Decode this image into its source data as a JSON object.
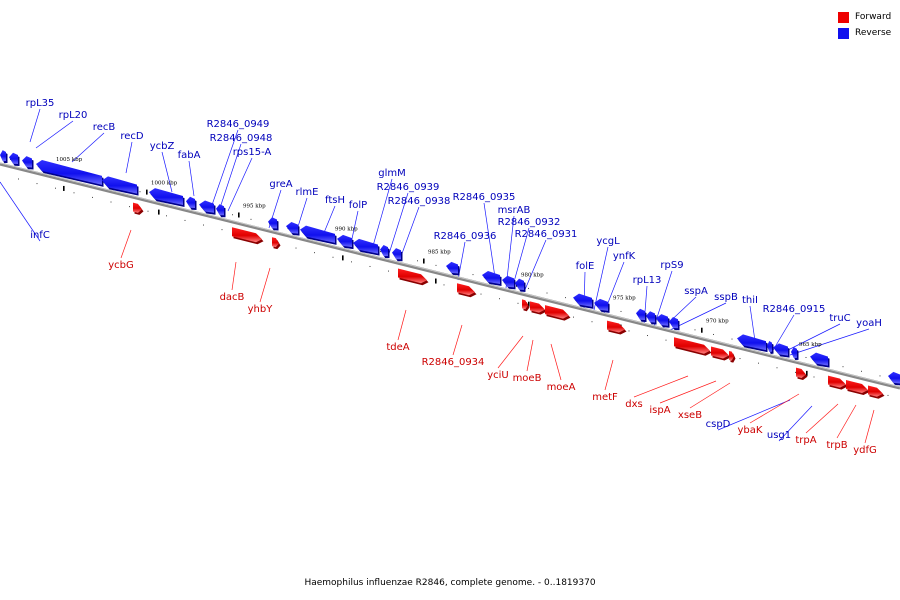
{
  "caption": "Haemophilus influenzae R2846, complete genome. - 0..1819370",
  "legend": [
    {
      "label": "Forward",
      "color": "#ee0000"
    },
    {
      "label": "Reverse",
      "color": "#1010ee"
    }
  ],
  "colors": {
    "forward": "#ee0000",
    "reverse": "#1010ee",
    "forward_label": "#cc0000",
    "reverse_label": "#0000bb"
  },
  "scale_ticks": [
    "1005 kbp",
    "1000 kbp",
    "995 kbp",
    "990 kbp",
    "985 kbp",
    "980 kbp",
    "975 kbp",
    "970 kbp",
    "965 kbp"
  ],
  "genes_reverse": [
    "rpL35",
    "rpL20",
    "recB",
    "recD",
    "ycbZ",
    "fabA",
    "R2846_0949",
    "R2846_0948",
    "rps15-A",
    "greA",
    "rlmE",
    "ftsH",
    "folP",
    "glmM",
    "R2846_0939",
    "R2846_0938",
    "R2846_0935",
    "msrAB",
    "R2846_0932",
    "R2846_0936",
    "R2846_0931",
    "folE",
    "ycgL",
    "ynfK",
    "rpL13",
    "rpS9",
    "sspA",
    "sspB",
    "thiI",
    "R2846_0915",
    "truC",
    "yoaH",
    "infC",
    "cspD",
    "usg1"
  ],
  "genes_forward": [
    "ycbG",
    "dacB",
    "yhbY",
    "tdeA",
    "R2846_0934",
    "yciU",
    "moeB",
    "moeA",
    "metF",
    "dxs",
    "ispA",
    "xseB",
    "ybaK",
    "trpA",
    "trpB",
    "ydfG"
  ]
}
